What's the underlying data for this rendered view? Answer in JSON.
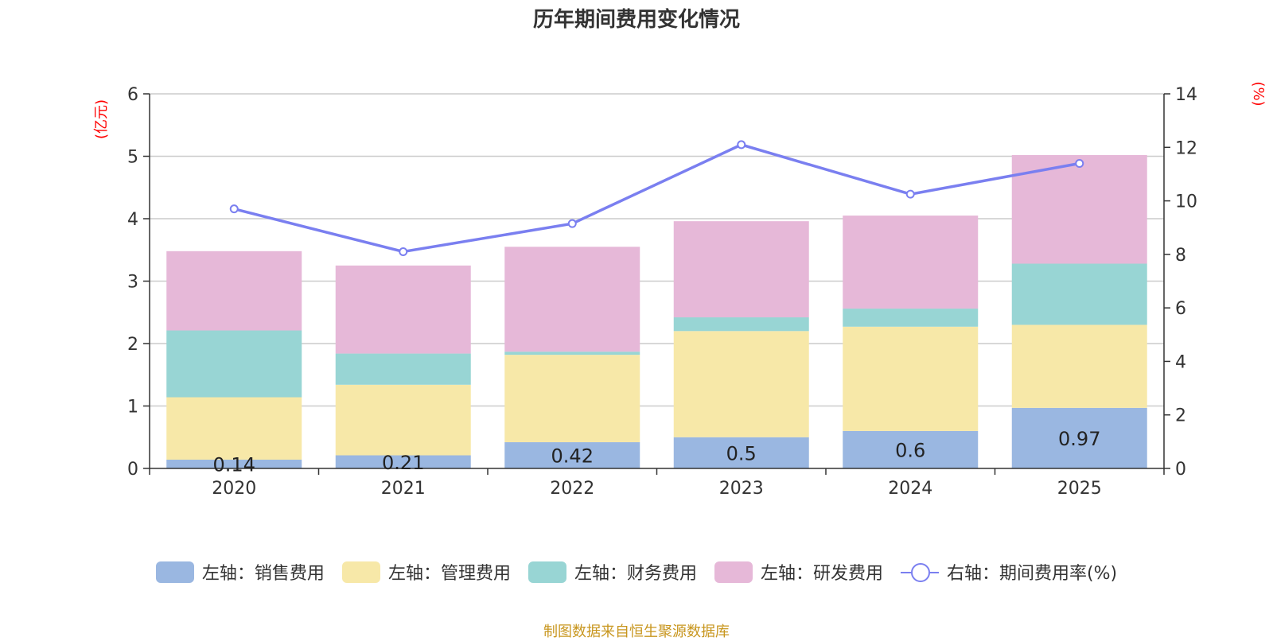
{
  "title": "历年期间费用变化情况",
  "source": "制图数据来自恒生聚源数据库",
  "chart_data": {
    "type": "bar",
    "stacked": true,
    "title": "历年期间费用变化情况",
    "categories": [
      "2020",
      "2021",
      "2022",
      "2023",
      "2024",
      "2025"
    ],
    "y_left": {
      "unit": "(亿元)",
      "range": [
        0,
        6
      ],
      "ticks": [
        "0",
        "1",
        "2",
        "3",
        "4",
        "5",
        "6"
      ]
    },
    "y_right": {
      "unit": "(%)",
      "range": [
        0,
        14
      ],
      "ticks": [
        "0",
        "2",
        "4",
        "6",
        "8",
        "10",
        "12",
        "14"
      ]
    },
    "grid": true,
    "legend_position": "bottom",
    "series": [
      {
        "name": "左轴：销售费用",
        "axis": "left",
        "kind": "bar",
        "color": "#9ab7e1",
        "values": [
          0.14,
          0.21,
          0.42,
          0.5,
          0.6,
          0.97
        ],
        "labels": [
          "0.14",
          "0.21",
          "0.42",
          "0.5",
          "0.6",
          "0.97"
        ]
      },
      {
        "name": "左轴：管理费用",
        "axis": "left",
        "kind": "bar",
        "color": "#f7e8a8",
        "values": [
          1.0,
          1.13,
          1.4,
          1.7,
          1.67,
          1.33
        ]
      },
      {
        "name": "左轴：财务费用",
        "axis": "left",
        "kind": "bar",
        "color": "#98d5d4",
        "values": [
          1.07,
          0.5,
          0.05,
          0.22,
          0.29,
          0.98
        ]
      },
      {
        "name": "左轴：研发费用",
        "axis": "left",
        "kind": "bar",
        "color": "#e6b8d8",
        "values": [
          1.27,
          1.41,
          1.68,
          1.54,
          1.49,
          1.74
        ]
      },
      {
        "name": "右轴：期间费用率(%)",
        "axis": "right",
        "kind": "line",
        "color": "#7a7ff0",
        "values": [
          9.7,
          8.1,
          9.15,
          12.1,
          10.25,
          11.4
        ]
      }
    ]
  }
}
